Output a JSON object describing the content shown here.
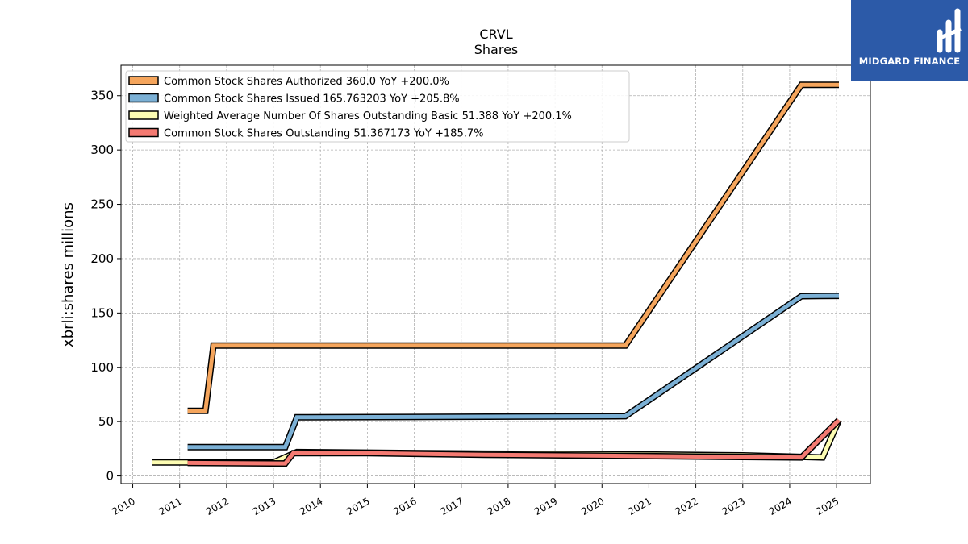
{
  "chart_data": {
    "type": "line",
    "title": "CRVL",
    "subtitle": "Shares",
    "ylabel": "xbrli:shares millions",
    "xlabel": "",
    "xlim": [
      2009.75,
      2025.72
    ],
    "ylim": [
      -7,
      378
    ],
    "xticks": [
      "2010",
      "2011",
      "2012",
      "2013",
      "2014",
      "2015",
      "2016",
      "2017",
      "2018",
      "2019",
      "2020",
      "2021",
      "2022",
      "2023",
      "2024",
      "2025"
    ],
    "yticks": [
      "0",
      "50",
      "100",
      "150",
      "200",
      "250",
      "300",
      "350"
    ],
    "grid": true,
    "legend_position": "top-left",
    "series": [
      {
        "name": "Common Stock Shares Authorized  360.0 YoY +200.0%",
        "color": "#f5a55c",
        "points": [
          [
            2011.17,
            60
          ],
          [
            2011.55,
            60
          ],
          [
            2011.72,
            120
          ],
          [
            2020.5,
            120
          ],
          [
            2024.25,
            360
          ],
          [
            2025.05,
            360
          ]
        ]
      },
      {
        "name": "Common Stock Shares Issued  165.763203 YoY +205.8%",
        "color": "#7bb0d5",
        "points": [
          [
            2011.17,
            26.5
          ],
          [
            2013.25,
            26.5
          ],
          [
            2013.5,
            54
          ],
          [
            2020.5,
            55
          ],
          [
            2024.25,
            165.5
          ],
          [
            2025.05,
            165.8
          ]
        ]
      },
      {
        "name": "Weighted Average Number Of Shares Outstanding Basic  51.388 YoY +200.1%",
        "color": "#fdfdb3",
        "points": [
          [
            2010.42,
            12.5
          ],
          [
            2013.0,
            12.5
          ],
          [
            2013.5,
            22
          ],
          [
            2015.0,
            21.5
          ],
          [
            2017.5,
            20.5
          ],
          [
            2020.5,
            20
          ],
          [
            2023.0,
            19
          ],
          [
            2024.7,
            17
          ],
          [
            2025.05,
            51.4
          ]
        ]
      },
      {
        "name": "Common Stock Shares Outstanding  51.367173 YoY +185.7%",
        "color": "#f47a72",
        "points": [
          [
            2011.17,
            12
          ],
          [
            2013.25,
            11.5
          ],
          [
            2013.42,
            21
          ],
          [
            2015.0,
            21
          ],
          [
            2017.5,
            19.5
          ],
          [
            2020.5,
            18.5
          ],
          [
            2023.0,
            17.5
          ],
          [
            2024.25,
            17
          ],
          [
            2025.05,
            51.4
          ]
        ]
      }
    ]
  },
  "logo": {
    "brand": "MIDGARD FINANCE"
  }
}
